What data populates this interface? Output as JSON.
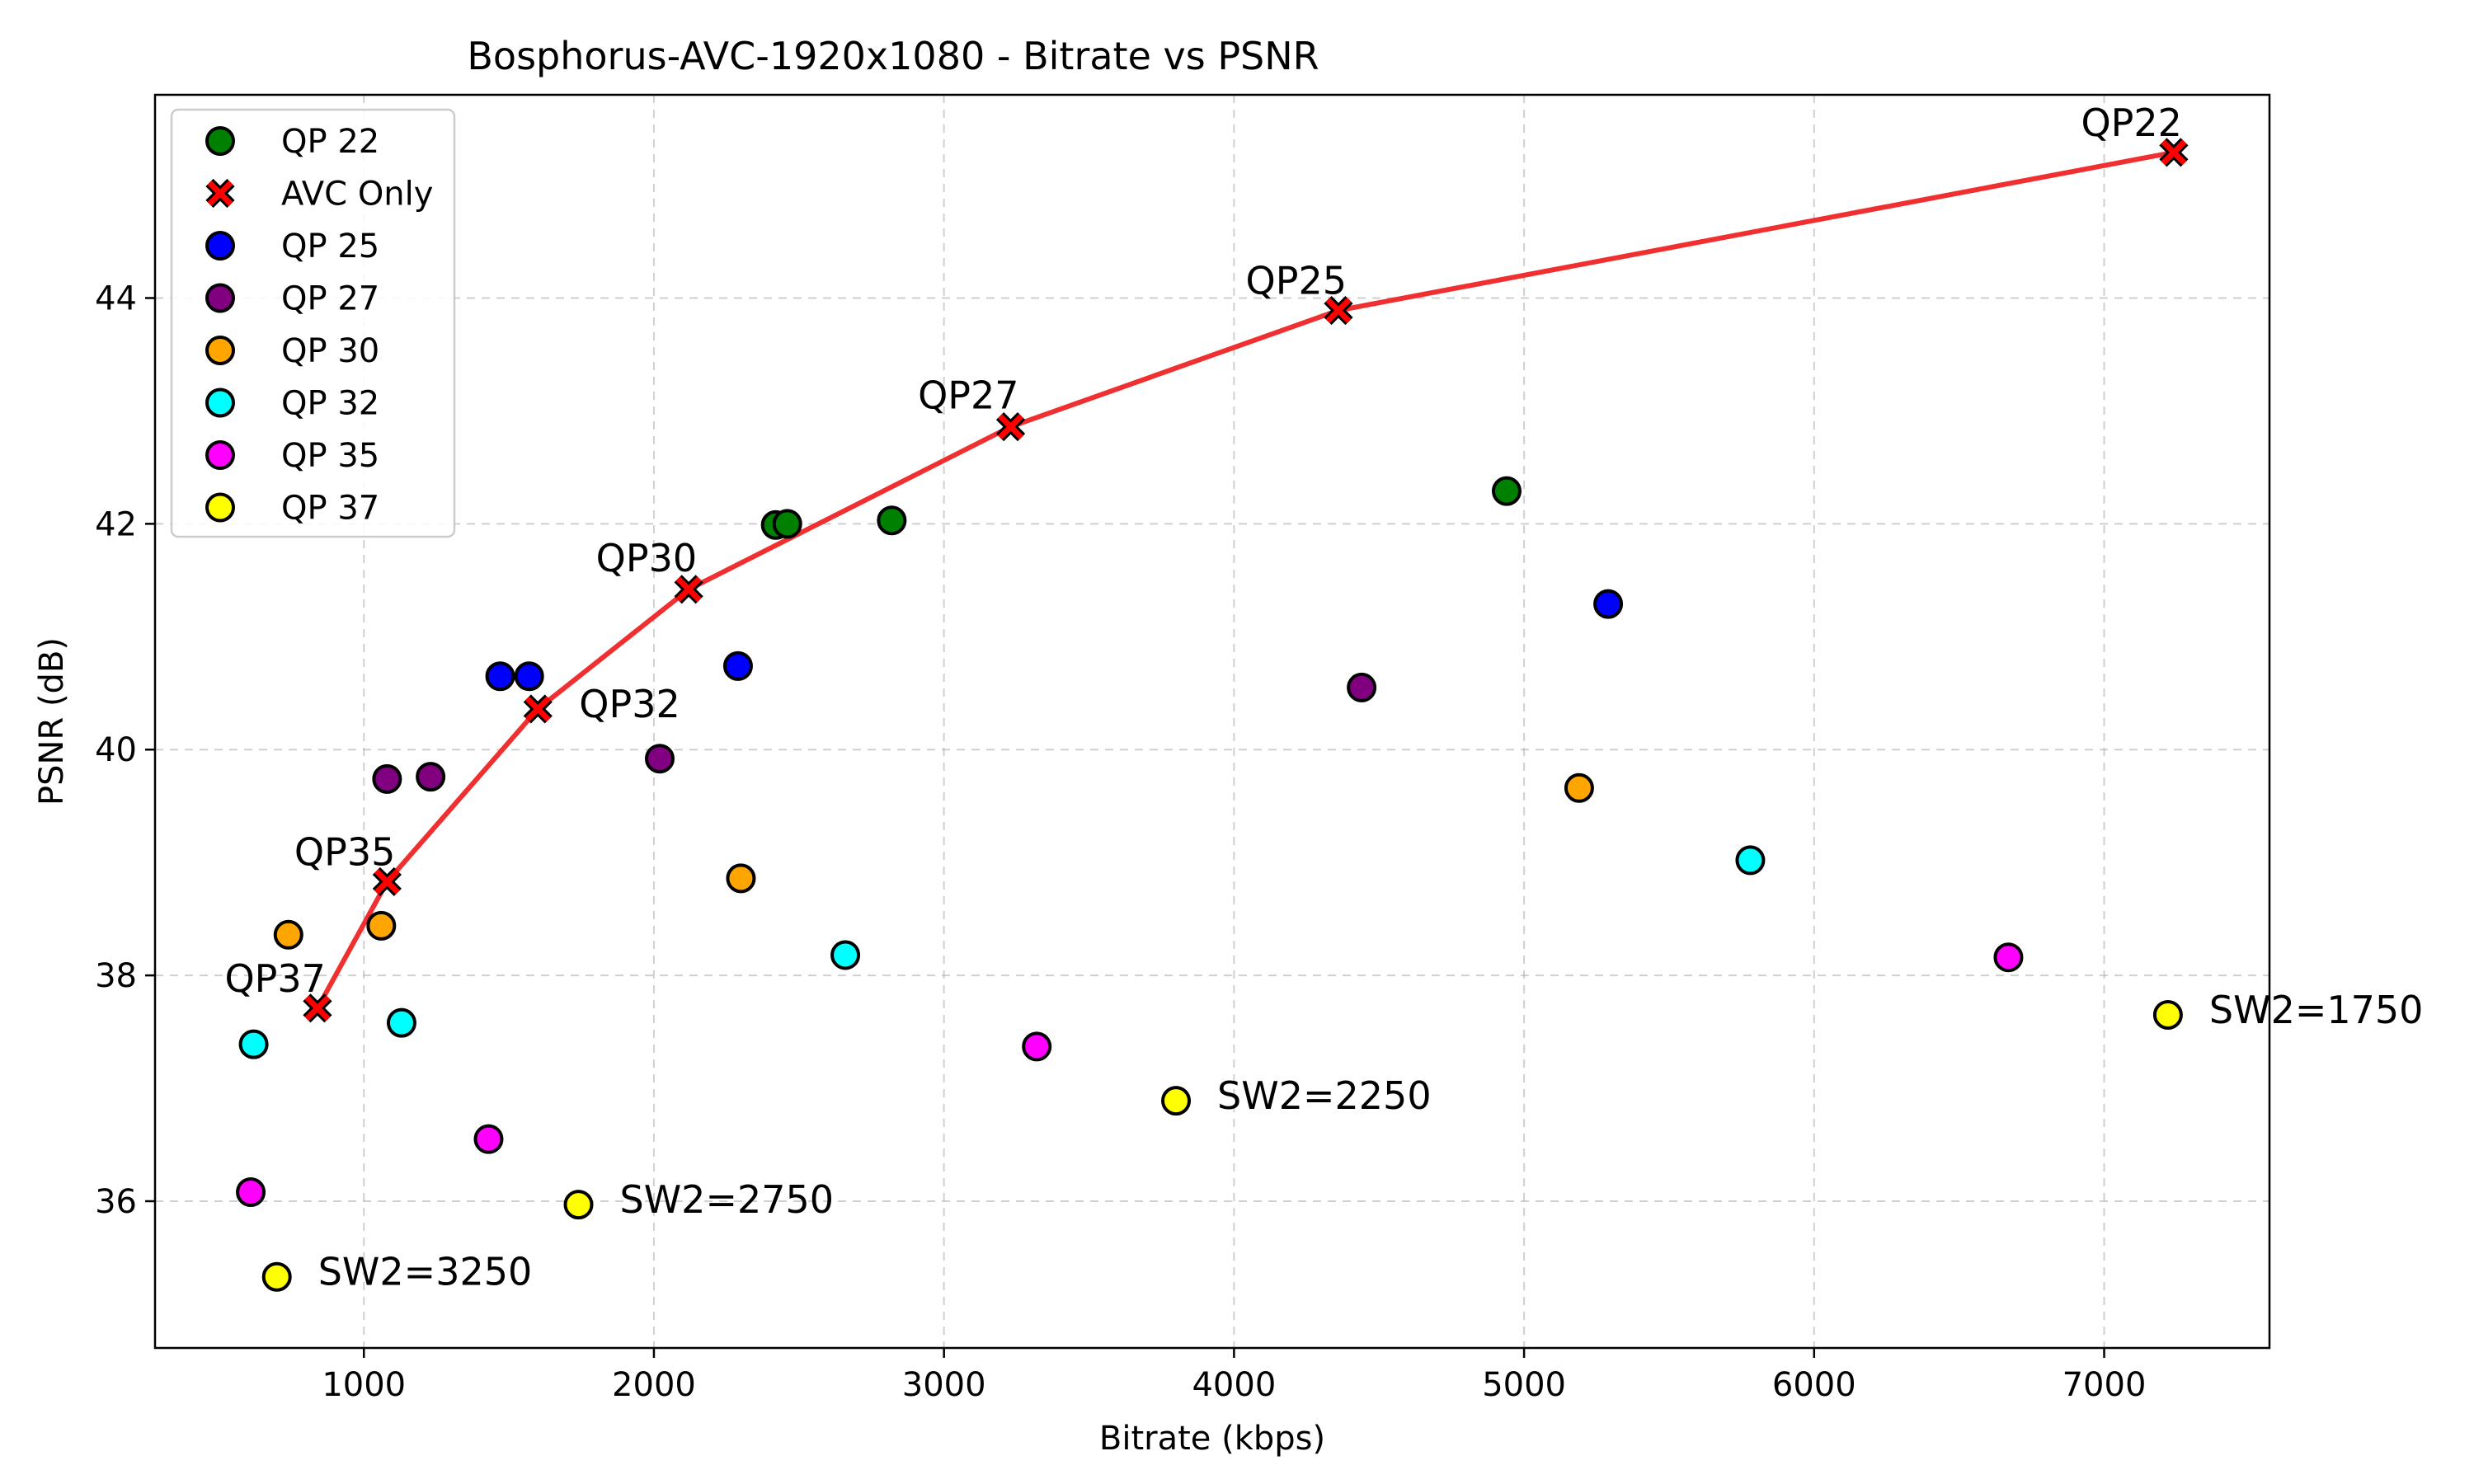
{
  "chart_data": {
    "type": "scatter",
    "title": "Bosphorus-AVC-1920x1080 - Bitrate vs PSNR",
    "xlabel": "Bitrate (kbps)",
    "ylabel": "PSNR (dB)",
    "xlim": [
      280,
      7570
    ],
    "ylim": [
      34.7,
      45.8
    ],
    "xticks": [
      1000,
      2000,
      3000,
      4000,
      5000,
      6000,
      7000
    ],
    "yticks": [
      36,
      38,
      40,
      42,
      44
    ],
    "xtick_labels": [
      "1000",
      "2000",
      "3000",
      "4000",
      "5000",
      "6000",
      "7000"
    ],
    "ytick_labels": [
      "36",
      "38",
      "40",
      "42",
      "44"
    ],
    "grid": true,
    "legend_position": "top-left",
    "legend": [
      "QP 22",
      "AVC Only",
      "QP 25",
      "QP 27",
      "QP 30",
      "QP 32",
      "QP 35",
      "QP 37"
    ],
    "series": [
      {
        "name": "QP 22",
        "marker": "circle",
        "color": "#008000",
        "points": [
          [
            2420,
            41.99
          ],
          [
            2460,
            42.0
          ],
          [
            2820,
            42.03
          ],
          [
            4940,
            42.29
          ]
        ]
      },
      {
        "name": "QP 25",
        "marker": "circle",
        "color": "#0000ff",
        "points": [
          [
            1470,
            40.65
          ],
          [
            1570,
            40.65
          ],
          [
            2290,
            40.74
          ],
          [
            5290,
            41.29
          ]
        ]
      },
      {
        "name": "QP 27",
        "marker": "circle",
        "color": "#800080",
        "points": [
          [
            1080,
            39.74
          ],
          [
            1230,
            39.76
          ],
          [
            2020,
            39.92
          ],
          [
            4440,
            40.55
          ]
        ]
      },
      {
        "name": "QP 30",
        "marker": "circle",
        "color": "#ffa500",
        "points": [
          [
            740,
            38.36
          ],
          [
            1060,
            38.44
          ],
          [
            2300,
            38.86
          ],
          [
            5190,
            39.66
          ]
        ]
      },
      {
        "name": "QP 32",
        "marker": "circle",
        "color": "#00ffff",
        "points": [
          [
            620,
            37.39
          ],
          [
            1130,
            37.58
          ],
          [
            2660,
            38.18
          ],
          [
            5780,
            39.02
          ]
        ]
      },
      {
        "name": "QP 35",
        "marker": "circle",
        "color": "#ff00ff",
        "points": [
          [
            610,
            36.08
          ],
          [
            1430,
            36.55
          ],
          [
            3320,
            37.37
          ],
          [
            6670,
            38.16
          ]
        ]
      },
      {
        "name": "QP 37",
        "marker": "circle",
        "color": "#ffff00",
        "points": [
          [
            700,
            35.33
          ],
          [
            1740,
            35.97
          ],
          [
            3800,
            36.89
          ],
          [
            7220,
            37.65
          ]
        ]
      },
      {
        "name": "AVC Only",
        "marker": "x",
        "color": "#ff0000",
        "line_color": "#f03030",
        "points": [
          [
            840,
            37.71
          ],
          [
            1080,
            38.83
          ],
          [
            1600,
            40.36
          ],
          [
            2120,
            41.42
          ],
          [
            3230,
            42.86
          ],
          [
            4360,
            43.89
          ],
          [
            7240,
            45.29
          ]
        ]
      }
    ],
    "annotations": [
      {
        "text": "QP37",
        "x": 840,
        "y": 37.71,
        "anchor": "end",
        "dx": 10,
        "dy": -20
      },
      {
        "text": "QP35",
        "x": 1080,
        "y": 38.83,
        "anchor": "end",
        "dx": 10,
        "dy": -20
      },
      {
        "text": "QP32",
        "x": 1600,
        "y": 40.36,
        "anchor": "start",
        "dx": 50,
        "dy": 10
      },
      {
        "text": "QP30",
        "x": 2120,
        "y": 41.42,
        "anchor": "end",
        "dx": 10,
        "dy": -22
      },
      {
        "text": "QP27",
        "x": 3230,
        "y": 42.86,
        "anchor": "end",
        "dx": 10,
        "dy": -22
      },
      {
        "text": "QP25",
        "x": 4360,
        "y": 43.89,
        "anchor": "end",
        "dx": 10,
        "dy": -20
      },
      {
        "text": "QP22",
        "x": 7240,
        "y": 45.29,
        "anchor": "end",
        "dx": 10,
        "dy": -20
      },
      {
        "text": "SW2=3250",
        "x": 700,
        "y": 35.33,
        "anchor": "start",
        "dx": 50,
        "dy": 10
      },
      {
        "text": "SW2=2750",
        "x": 1740,
        "y": 35.97,
        "anchor": "start",
        "dx": 50,
        "dy": 10
      },
      {
        "text": "SW2=2250",
        "x": 3800,
        "y": 36.89,
        "anchor": "start",
        "dx": 50,
        "dy": 10
      },
      {
        "text": "SW2=1750",
        "x": 7220,
        "y": 37.65,
        "anchor": "start",
        "dx": 50,
        "dy": 10
      }
    ]
  }
}
